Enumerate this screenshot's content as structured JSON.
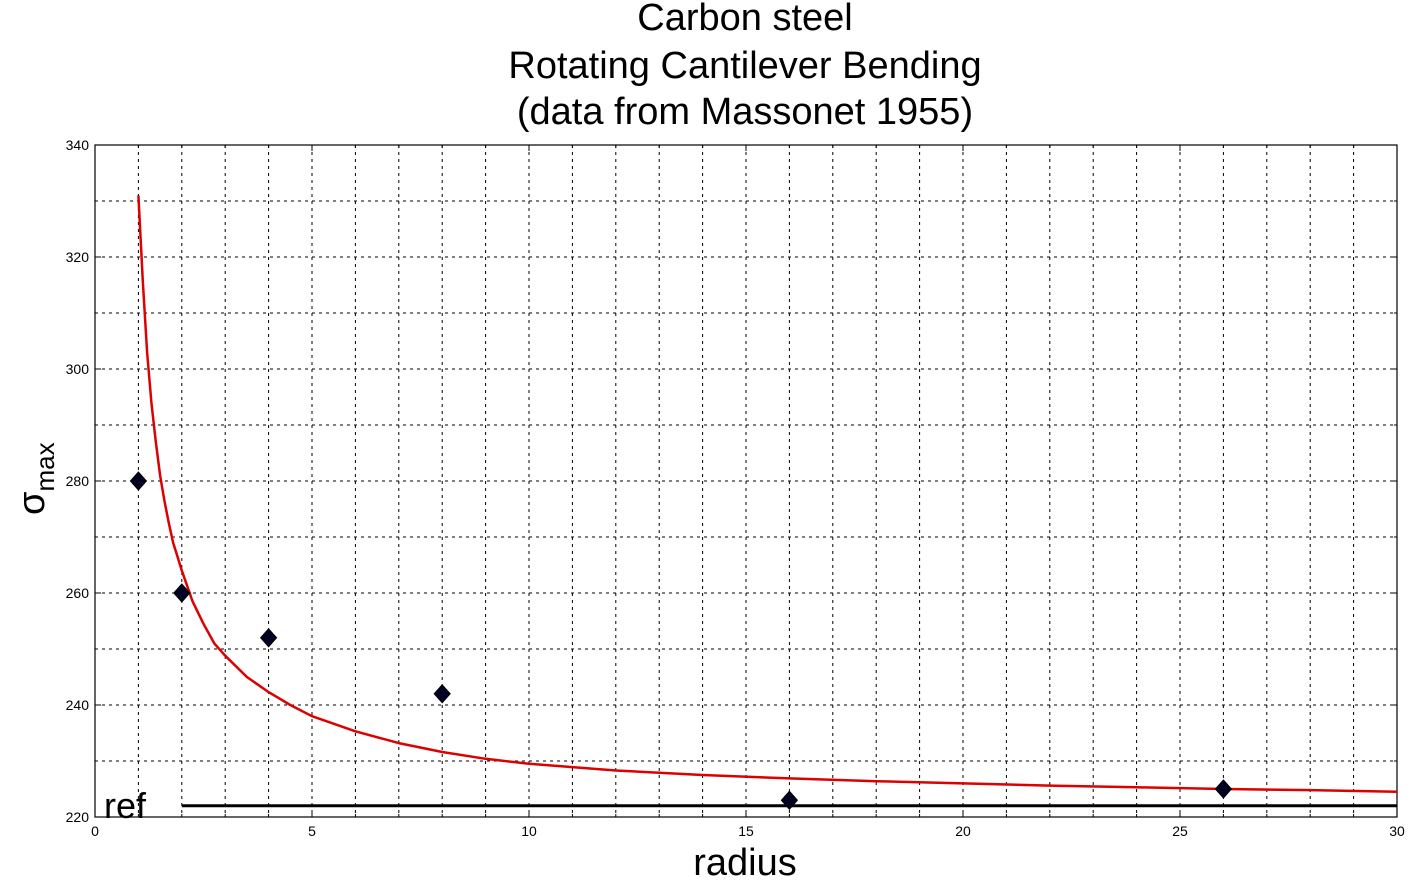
{
  "chart_data": {
    "type": "scatter",
    "title": [
      "Carbon steel",
      "Rotating Cantilever Bending",
      "(data from Massonet 1955)"
    ],
    "xlabel": "radius",
    "ylabel_main": "σ",
    "ylabel_sub": "max",
    "xlim": [
      0,
      30
    ],
    "ylim": [
      220,
      340
    ],
    "xticks": [
      0,
      5,
      10,
      15,
      20,
      25,
      30
    ],
    "yticks": [
      220,
      240,
      260,
      280,
      300,
      320,
      340
    ],
    "grid": true,
    "series": [
      {
        "type": "scatter",
        "marker": "diamond",
        "color": "#000022",
        "x": [
          1,
          2,
          4,
          8,
          16,
          26
        ],
        "y": [
          280,
          260,
          252,
          242,
          223,
          225
        ]
      },
      {
        "type": "line",
        "color": "#dd0000",
        "x": [
          1.0,
          1.1,
          1.2,
          1.3,
          1.4,
          1.5,
          1.6,
          1.7,
          1.8,
          1.9,
          2.0,
          2.25,
          2.5,
          2.75,
          3.0,
          3.5,
          4.0,
          4.5,
          5.0,
          6.0,
          7.0,
          8.0,
          9.0,
          10.0,
          12.0,
          14.0,
          16.0,
          18.0,
          20.0,
          22.0,
          24.0,
          26.0,
          28.0,
          30.0
        ],
        "y": [
          331,
          316,
          303,
          294,
          287,
          281,
          276.5,
          272.5,
          269,
          266.5,
          264,
          258.5,
          254.5,
          251,
          248.8,
          245,
          242.3,
          240,
          238,
          235.3,
          233.2,
          231.6,
          230.4,
          229.5,
          228.3,
          227.5,
          226.9,
          226.4,
          226.0,
          225.6,
          225.3,
          225.0,
          224.8,
          224.5
        ]
      },
      {
        "type": "reference-line",
        "label": "ref",
        "color": "#000000",
        "x": [
          2,
          30
        ],
        "y": 222
      }
    ]
  }
}
